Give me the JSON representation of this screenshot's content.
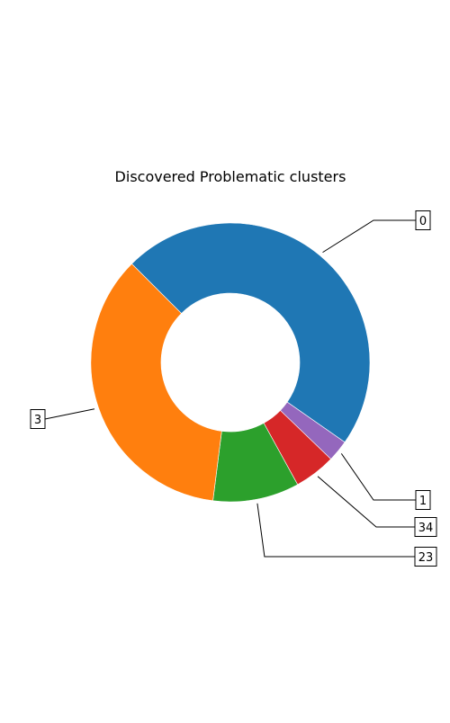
{
  "chart_data": {
    "type": "pie",
    "style": "donut",
    "title": "Discovered Problematic clusters",
    "labels": [
      "0",
      "1",
      "34",
      "23",
      "3"
    ],
    "values": [
      47.2,
      2.5,
      4.8,
      10.0,
      35.5
    ],
    "colors": [
      "#1f77b4",
      "#9467bd",
      "#d62728",
      "#2ca02c",
      "#ff7f0e"
    ],
    "start_angle_deg": 135,
    "direction": "clockwise",
    "annotation_edge": "black",
    "annotation_box_fill": "#ffffff"
  }
}
